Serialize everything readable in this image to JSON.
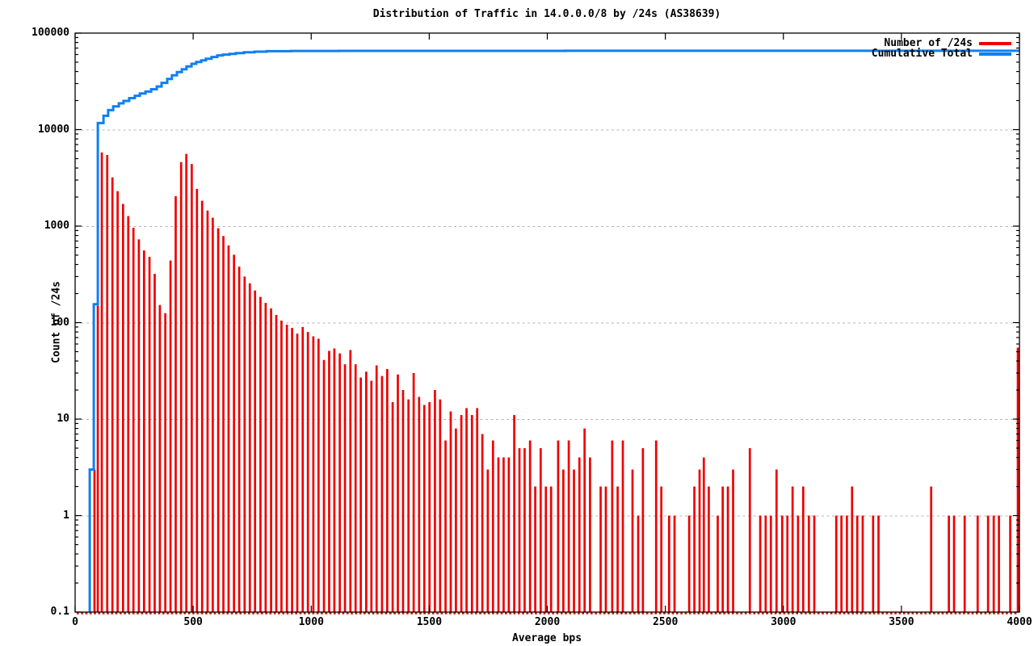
{
  "title": "Distribution of Traffic in 14.0.0.0/8 by /24s (AS38639)",
  "legend": [
    {
      "label": "Number of /24s",
      "color_key": "bars"
    },
    {
      "label": "Cumulative Total",
      "color_key": "cumulative"
    }
  ],
  "axes": {
    "x": {
      "label": "Average bps",
      "min": 0,
      "max": 4000,
      "tick_values": [
        0,
        500,
        1000,
        1500,
        2000,
        2500,
        3000,
        3500,
        4000
      ]
    },
    "y": {
      "label": "Count of /24s",
      "scale": "log",
      "min": 0.1,
      "max": 100000,
      "tick_labels": [
        "0.1",
        "1",
        "10",
        "100",
        "1000",
        "10000",
        "100000"
      ],
      "grid_values": [
        1,
        10,
        100,
        1000,
        10000
      ]
    }
  },
  "colors": {
    "bars": "#ef0000",
    "cumulative": "#0d80f2",
    "grid": "#b4b4b4",
    "axis": "#000000",
    "background": "#ffffff"
  },
  "chart_data": {
    "type": "bar",
    "title": "Distribution of Traffic in 14.0.0.0/8 by /24s (AS38639)",
    "xlabel": "Average bps",
    "ylabel": "Count of /24s",
    "x_range": [
      0,
      4000
    ],
    "y_range": [
      0.1,
      100000
    ],
    "y_scale": "log",
    "grid": "horizontal-dashed",
    "legend_position": "top-right-inside",
    "bucket_width_bps": 22.4,
    "total_24s_in_slash8": 65536,
    "series": [
      {
        "name": "Number of /24s",
        "style": "impulses",
        "color_key": "bars",
        "points": [
          [
            82,
            3
          ],
          [
            96,
            150
          ],
          [
            113,
            5800
          ],
          [
            136,
            5450
          ],
          [
            158,
            3200
          ],
          [
            180,
            2300
          ],
          [
            203,
            1700
          ],
          [
            225,
            1270
          ],
          [
            247,
            960
          ],
          [
            270,
            730
          ],
          [
            292,
            560
          ],
          [
            315,
            480
          ],
          [
            337,
            320
          ],
          [
            359,
            152
          ],
          [
            382,
            125
          ],
          [
            404,
            440
          ],
          [
            426,
            2040
          ],
          [
            449,
            4600
          ],
          [
            471,
            5600
          ],
          [
            494,
            4400
          ],
          [
            516,
            2430
          ],
          [
            538,
            1830
          ],
          [
            561,
            1450
          ],
          [
            583,
            1220
          ],
          [
            606,
            950
          ],
          [
            628,
            790
          ],
          [
            650,
            630
          ],
          [
            673,
            505
          ],
          [
            695,
            380
          ],
          [
            718,
            300
          ],
          [
            740,
            255
          ],
          [
            762,
            215
          ],
          [
            785,
            185
          ],
          [
            807,
            160
          ],
          [
            830,
            140
          ],
          [
            852,
            120
          ],
          [
            874,
            105
          ],
          [
            897,
            95
          ],
          [
            919,
            88
          ],
          [
            941,
            77
          ],
          [
            964,
            90
          ],
          [
            986,
            80
          ],
          [
            1009,
            72
          ],
          [
            1031,
            68
          ],
          [
            1054,
            41
          ],
          [
            1076,
            51
          ],
          [
            1098,
            54
          ],
          [
            1121,
            48
          ],
          [
            1143,
            37
          ],
          [
            1166,
            52
          ],
          [
            1188,
            37
          ],
          [
            1210,
            27
          ],
          [
            1233,
            31
          ],
          [
            1255,
            25
          ],
          [
            1277,
            36
          ],
          [
            1300,
            28
          ],
          [
            1322,
            33
          ],
          [
            1345,
            15
          ],
          [
            1367,
            29
          ],
          [
            1389,
            20
          ],
          [
            1412,
            16
          ],
          [
            1434,
            30
          ],
          [
            1457,
            17
          ],
          [
            1479,
            14
          ],
          [
            1501,
            15
          ],
          [
            1524,
            20
          ],
          [
            1546,
            16
          ],
          [
            1569,
            6
          ],
          [
            1591,
            12
          ],
          [
            1613,
            8
          ],
          [
            1636,
            11
          ],
          [
            1658,
            13
          ],
          [
            1681,
            11
          ],
          [
            1703,
            13
          ],
          [
            1725,
            7
          ],
          [
            1748,
            3
          ],
          [
            1770,
            6
          ],
          [
            1793,
            4
          ],
          [
            1815,
            4
          ],
          [
            1837,
            4
          ],
          [
            1860,
            11
          ],
          [
            1882,
            5
          ],
          [
            1904,
            5
          ],
          [
            1927,
            6
          ],
          [
            1949,
            2
          ],
          [
            1972,
            5
          ],
          [
            1994,
            2
          ],
          [
            2016,
            2
          ],
          [
            2046,
            6
          ],
          [
            2068,
            3
          ],
          [
            2091,
            6
          ],
          [
            2113,
            3
          ],
          [
            2136,
            4
          ],
          [
            2158,
            8
          ],
          [
            2181,
            4
          ],
          [
            2226,
            2
          ],
          [
            2248,
            2
          ],
          [
            2275,
            6
          ],
          [
            2298,
            2
          ],
          [
            2320,
            6
          ],
          [
            2361,
            3
          ],
          [
            2385,
            1
          ],
          [
            2405,
            5
          ],
          [
            2461,
            6
          ],
          [
            2483,
            2
          ],
          [
            2516,
            1
          ],
          [
            2539,
            1
          ],
          [
            2601,
            1
          ],
          [
            2623,
            2
          ],
          [
            2645,
            3
          ],
          [
            2663,
            4
          ],
          [
            2684,
            2
          ],
          [
            2722,
            1
          ],
          [
            2743,
            2
          ],
          [
            2765,
            2
          ],
          [
            2787,
            3
          ],
          [
            2858,
            5
          ],
          [
            2902,
            1
          ],
          [
            2925,
            1
          ],
          [
            2947,
            1
          ],
          [
            2971,
            3
          ],
          [
            2995,
            1
          ],
          [
            3017,
            1
          ],
          [
            3039,
            2
          ],
          [
            3062,
            1
          ],
          [
            3084,
            2
          ],
          [
            3108,
            1
          ],
          [
            3131,
            1
          ],
          [
            3224,
            1
          ],
          [
            3246,
            1
          ],
          [
            3269,
            1
          ],
          [
            3291,
            2
          ],
          [
            3313,
            1
          ],
          [
            3336,
            1
          ],
          [
            3380,
            1
          ],
          [
            3403,
            1
          ],
          [
            3626,
            2
          ],
          [
            3701,
            1
          ],
          [
            3723,
            1
          ],
          [
            3768,
            1
          ],
          [
            3823,
            1
          ],
          [
            3867,
            1
          ],
          [
            3891,
            1
          ],
          [
            3913,
            1
          ],
          [
            3961,
            1
          ],
          [
            4000,
            55
          ]
        ]
      },
      {
        "name": "Cumulative Total",
        "style": "steps",
        "color_key": "cumulative",
        "points": [
          [
            62,
            0.1
          ],
          [
            62,
            3
          ],
          [
            79,
            3
          ],
          [
            79,
            155
          ],
          [
            96,
            155
          ],
          [
            96,
            6300
          ],
          [
            120,
            11700
          ],
          [
            140,
            13900
          ],
          [
            161,
            15900
          ],
          [
            185,
            17400
          ],
          [
            205,
            18700
          ],
          [
            229,
            19800
          ],
          [
            253,
            21200
          ],
          [
            274,
            22400
          ],
          [
            298,
            23700
          ],
          [
            322,
            24800
          ],
          [
            346,
            26200
          ],
          [
            366,
            28000
          ],
          [
            390,
            30500
          ],
          [
            410,
            33500
          ],
          [
            431,
            36500
          ],
          [
            452,
            39500
          ],
          [
            472,
            42300
          ],
          [
            493,
            45200
          ],
          [
            513,
            48100
          ],
          [
            534,
            50200
          ],
          [
            554,
            52200
          ],
          [
            578,
            54300
          ],
          [
            602,
            56500
          ],
          [
            626,
            58700
          ],
          [
            654,
            59900
          ],
          [
            681,
            61000
          ],
          [
            715,
            62100
          ],
          [
            760,
            63300
          ],
          [
            811,
            64200
          ],
          [
            914,
            65000
          ],
          [
            1119,
            65300
          ],
          [
            1461,
            65450
          ],
          [
            2077,
            65510
          ],
          [
            3103,
            65530
          ],
          [
            4000,
            65536
          ]
        ]
      }
    ]
  }
}
